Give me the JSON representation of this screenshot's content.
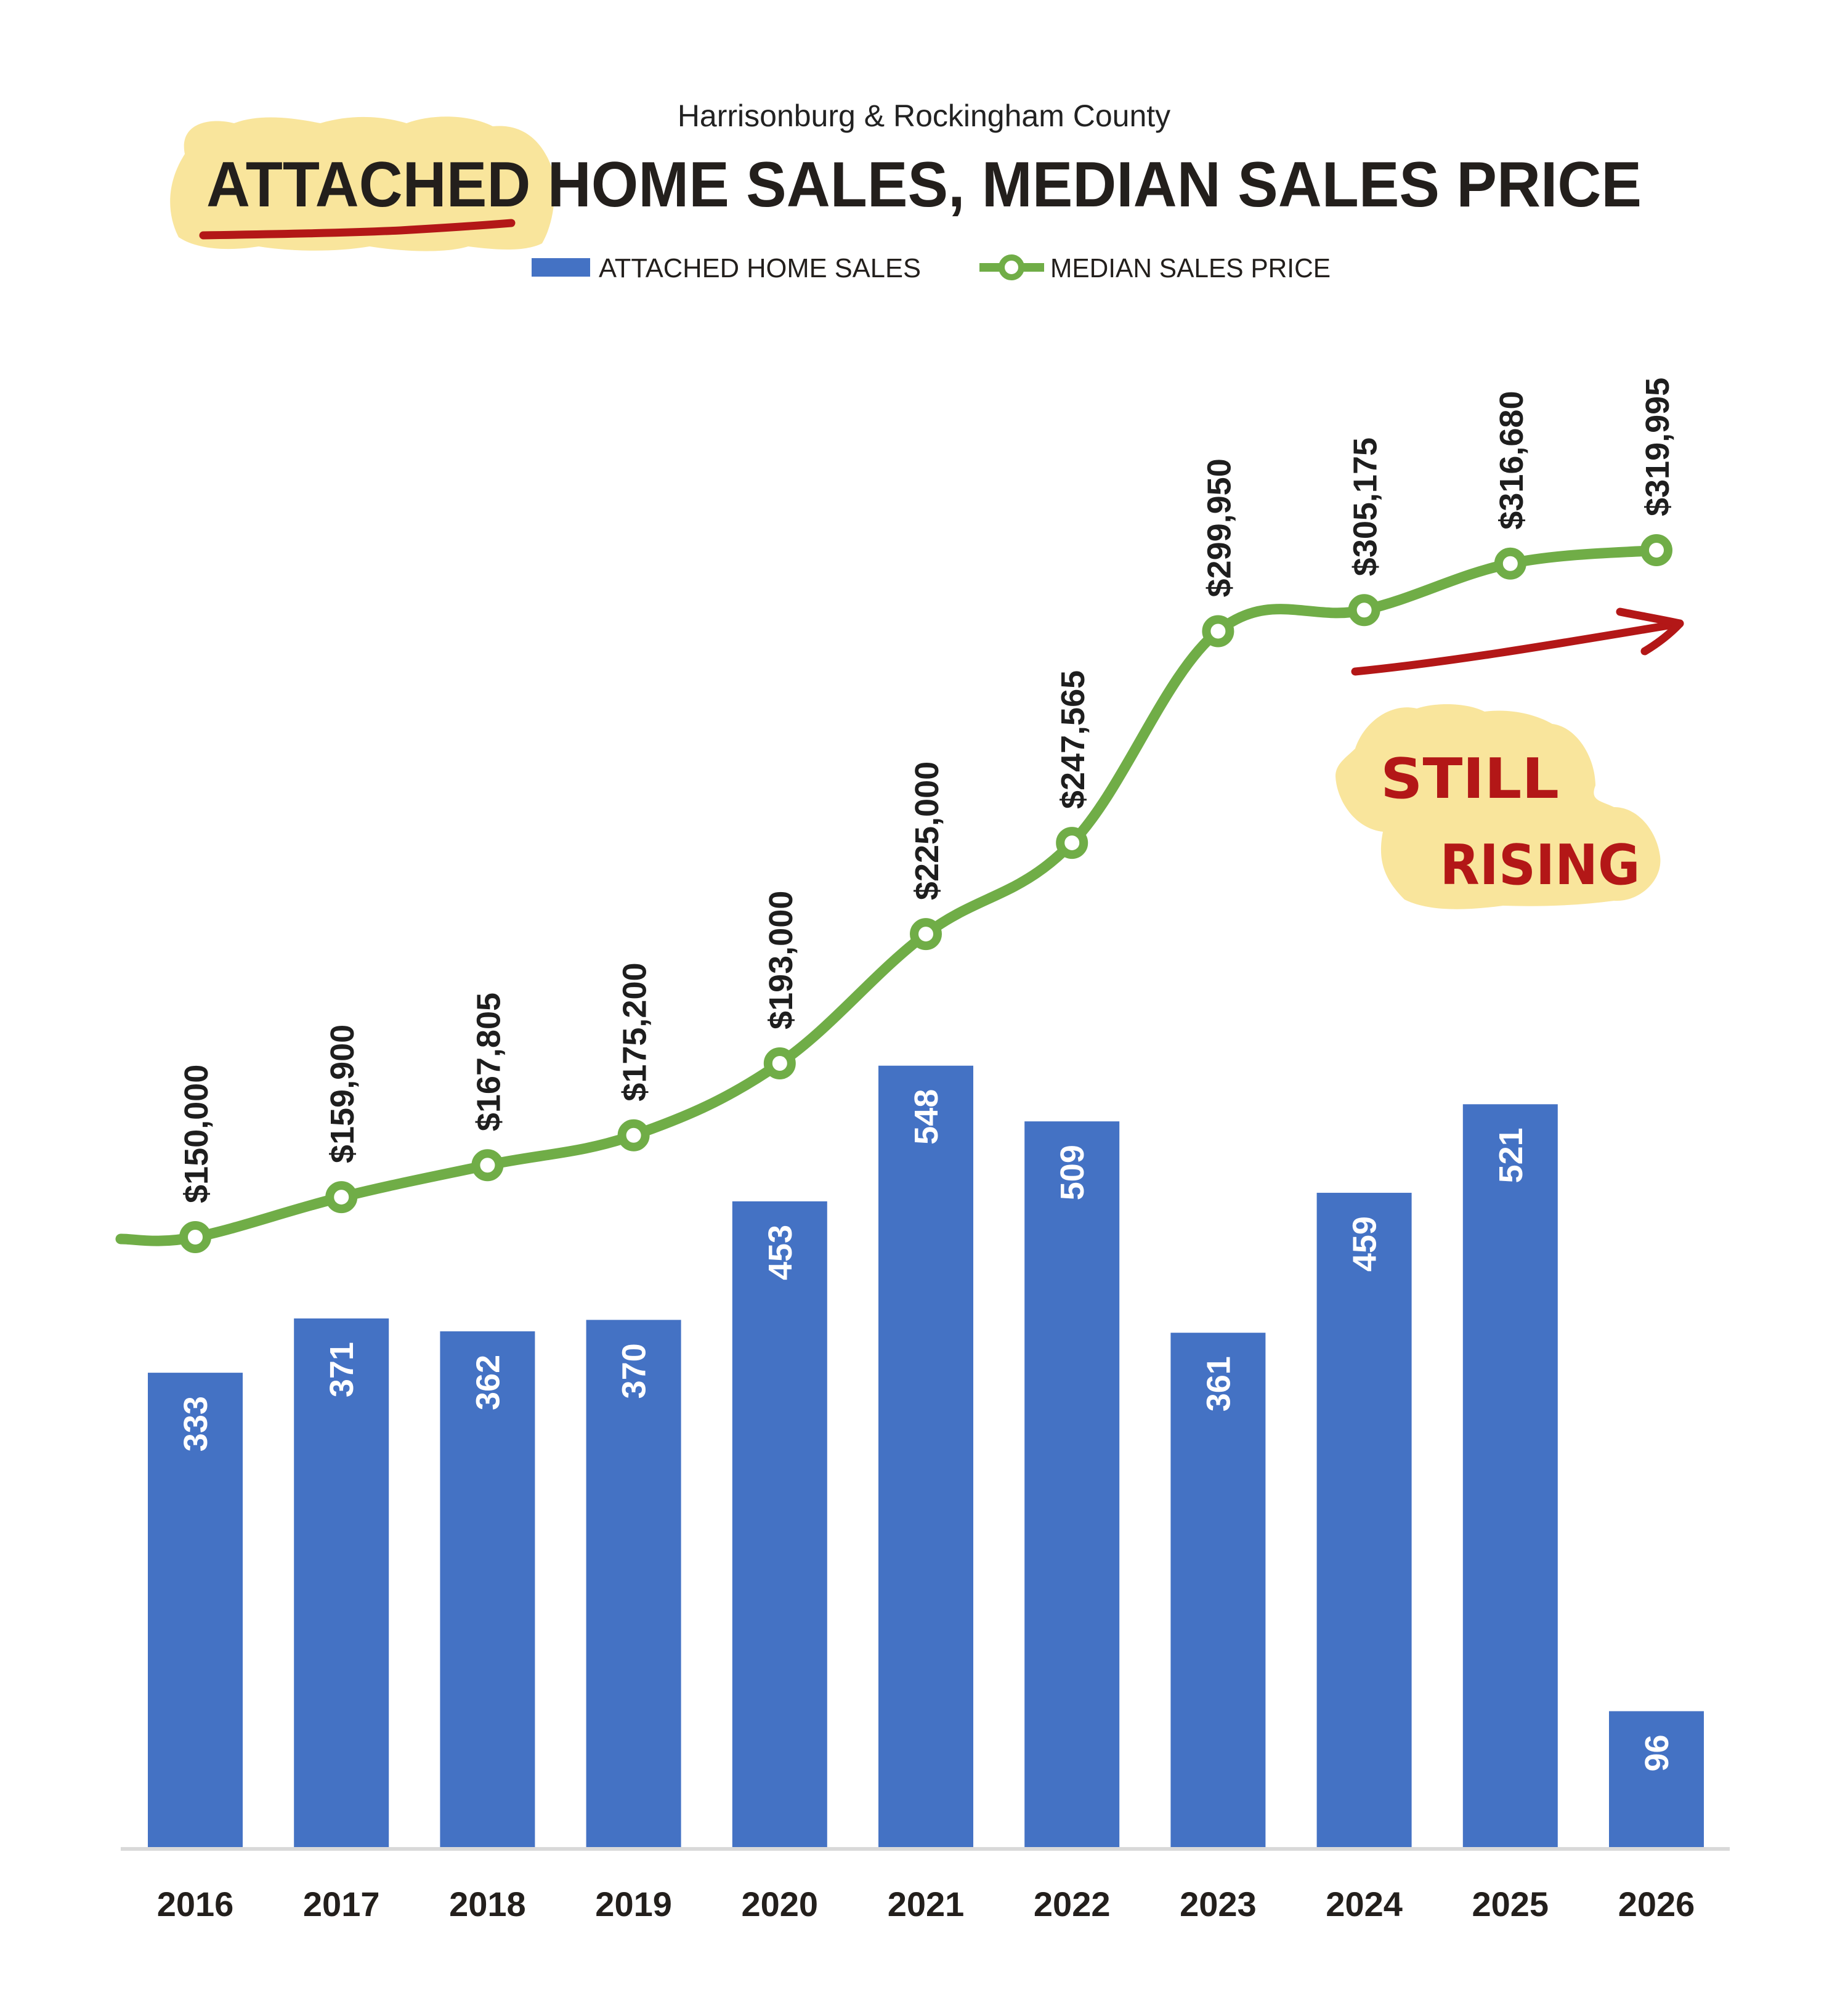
{
  "header": {
    "subtitle": "Harrisonburg & Rockingham County",
    "title_highlight": "ATTACHED",
    "title_rest": " HOME SALES, MEDIAN SALES PRICE"
  },
  "legend": {
    "bars_label": "ATTACHED HOME SALES",
    "line_label": "MEDIAN SALES PRICE"
  },
  "annotation": {
    "line1": "STILL",
    "line2": "RISING"
  },
  "colors": {
    "bar": "#4472C4",
    "line": "#70AD47",
    "annotation_red": "#B31717",
    "highlight_yellow": "#F9E59C",
    "axis": "#D9D9D9",
    "text": "#231F1C"
  },
  "chart_data": {
    "type": "bar+line",
    "title": "ATTACHED HOME SALES, MEDIAN SALES PRICE",
    "subtitle": "Harrisonburg & Rockingham County",
    "categories": [
      "2016",
      "2017",
      "2018",
      "2019",
      "2020",
      "2021",
      "2022",
      "2023",
      "2024",
      "2025",
      "2026"
    ],
    "series": [
      {
        "name": "ATTACHED HOME SALES",
        "type": "bar",
        "values": [
          333,
          371,
          362,
          370,
          453,
          548,
          509,
          361,
          459,
          521,
          96
        ],
        "labels": [
          "333",
          "371",
          "362",
          "370",
          "453",
          "548",
          "509",
          "361",
          "459",
          "521",
          "96"
        ]
      },
      {
        "name": "MEDIAN SALES PRICE",
        "type": "line",
        "values": [
          150000,
          159900,
          167805,
          175200,
          193000,
          225000,
          247565,
          299950,
          305175,
          316680,
          319995
        ],
        "labels": [
          "$150,000",
          "$159,900",
          "$167,805",
          "$175,200",
          "$193,000",
          "$225,000",
          "$247,565",
          "$299,950",
          "$305,175",
          "$316,680",
          "$319,995"
        ]
      }
    ],
    "annotations": [
      "STILL RISING",
      "red arrow pointing up-right over 2024–2026",
      "ATTACHED underlined and highlighted"
    ],
    "xlabel": "",
    "ylabel": "",
    "grid": false,
    "legend_position": "top"
  }
}
